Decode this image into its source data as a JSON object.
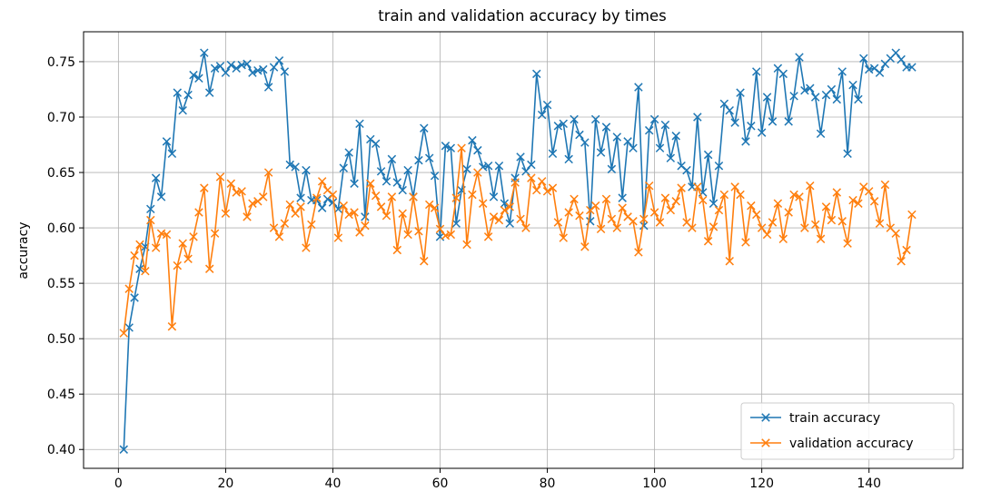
{
  "chart_data": {
    "type": "line",
    "title": "train and validation accuracy by times",
    "xlabel": "",
    "ylabel": "accuracy",
    "xlim": [
      -6.5,
      157.5
    ],
    "ylim": [
      0.383,
      0.777
    ],
    "x_ticks": [
      0,
      20,
      40,
      60,
      80,
      100,
      120,
      140
    ],
    "y_ticks": [
      0.4,
      0.45,
      0.5,
      0.55,
      0.6,
      0.65,
      0.7,
      0.75
    ],
    "grid": true,
    "legend_position": "lower-right",
    "marker": "x",
    "x_start": 1,
    "series": [
      {
        "name": "train accuracy",
        "color": "#1f77b4",
        "values": [
          0.4,
          0.51,
          0.537,
          0.563,
          0.583,
          0.617,
          0.645,
          0.628,
          0.678,
          0.667,
          0.722,
          0.706,
          0.72,
          0.738,
          0.735,
          0.758,
          0.722,
          0.744,
          0.746,
          0.74,
          0.747,
          0.744,
          0.747,
          0.748,
          0.74,
          0.742,
          0.743,
          0.727,
          0.745,
          0.751,
          0.741,
          0.657,
          0.655,
          0.627,
          0.652,
          0.625,
          0.625,
          0.618,
          0.626,
          0.623,
          0.617,
          0.654,
          0.668,
          0.64,
          0.694,
          0.61,
          0.68,
          0.676,
          0.651,
          0.642,
          0.662,
          0.641,
          0.634,
          0.652,
          0.628,
          0.661,
          0.69,
          0.663,
          0.647,
          0.592,
          0.674,
          0.672,
          0.604,
          0.634,
          0.653,
          0.679,
          0.67,
          0.655,
          0.656,
          0.628,
          0.656,
          0.622,
          0.604,
          0.645,
          0.664,
          0.651,
          0.657,
          0.739,
          0.702,
          0.711,
          0.667,
          0.692,
          0.694,
          0.662,
          0.698,
          0.684,
          0.677,
          0.606,
          0.698,
          0.668,
          0.691,
          0.653,
          0.682,
          0.627,
          0.678,
          0.672,
          0.727,
          0.602,
          0.688,
          0.698,
          0.672,
          0.693,
          0.663,
          0.683,
          0.656,
          0.652,
          0.637,
          0.7,
          0.632,
          0.666,
          0.622,
          0.656,
          0.712,
          0.706,
          0.695,
          0.722,
          0.678,
          0.692,
          0.741,
          0.686,
          0.718,
          0.696,
          0.744,
          0.739,
          0.696,
          0.719,
          0.754,
          0.724,
          0.726,
          0.718,
          0.685,
          0.72,
          0.725,
          0.716,
          0.741,
          0.667,
          0.729,
          0.716,
          0.753,
          0.743,
          0.744,
          0.74,
          0.748,
          0.753,
          0.758,
          0.752,
          0.745,
          0.745
        ]
      },
      {
        "name": "validation accuracy",
        "color": "#ff7f0e",
        "values": [
          0.505,
          0.545,
          0.575,
          0.585,
          0.561,
          0.607,
          0.582,
          0.595,
          0.594,
          0.511,
          0.566,
          0.586,
          0.572,
          0.592,
          0.614,
          0.636,
          0.563,
          0.595,
          0.646,
          0.613,
          0.64,
          0.632,
          0.633,
          0.61,
          0.622,
          0.624,
          0.628,
          0.65,
          0.6,
          0.592,
          0.604,
          0.621,
          0.613,
          0.619,
          0.582,
          0.603,
          0.627,
          0.642,
          0.634,
          0.63,
          0.591,
          0.62,
          0.612,
          0.614,
          0.596,
          0.602,
          0.64,
          0.629,
          0.619,
          0.611,
          0.628,
          0.58,
          0.613,
          0.594,
          0.628,
          0.597,
          0.57,
          0.621,
          0.618,
          0.599,
          0.593,
          0.594,
          0.627,
          0.672,
          0.585,
          0.63,
          0.65,
          0.622,
          0.592,
          0.61,
          0.607,
          0.616,
          0.619,
          0.641,
          0.608,
          0.6,
          0.645,
          0.634,
          0.642,
          0.633,
          0.636,
          0.605,
          0.591,
          0.614,
          0.626,
          0.611,
          0.583,
          0.616,
          0.62,
          0.599,
          0.626,
          0.608,
          0.6,
          0.618,
          0.61,
          0.606,
          0.578,
          0.608,
          0.638,
          0.614,
          0.605,
          0.627,
          0.616,
          0.624,
          0.636,
          0.605,
          0.6,
          0.637,
          0.625,
          0.588,
          0.601,
          0.616,
          0.63,
          0.57,
          0.637,
          0.63,
          0.587,
          0.62,
          0.612,
          0.6,
          0.594,
          0.605,
          0.622,
          0.59,
          0.614,
          0.63,
          0.628,
          0.6,
          0.638,
          0.603,
          0.59,
          0.619,
          0.607,
          0.632,
          0.606,
          0.586,
          0.625,
          0.622,
          0.637,
          0.633,
          0.624,
          0.604,
          0.639,
          0.6,
          0.595,
          0.57,
          0.58,
          0.612
        ]
      }
    ]
  }
}
